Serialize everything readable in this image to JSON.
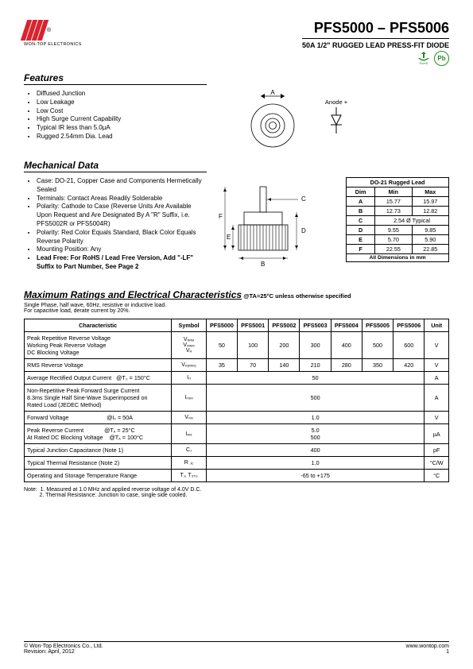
{
  "header": {
    "company": "WON-TOP ELECTRONICS",
    "part_range": "PFS5000 – PFS5006",
    "subtitle": "50A 1/2\" RUGGED LEAD PRESS-FIT DIODE",
    "rohs_text": "RoHS",
    "pb_text": "Pb"
  },
  "features": {
    "title": "Features",
    "items": [
      "Diffused Junction",
      "Low Leakage",
      "Low Cost",
      "High Surge Current Capability",
      "Typical IR less than 5.0µA",
      "Rugged 2.54mm Dia. Lead"
    ],
    "anode_label": "Anode +"
  },
  "mechanical": {
    "title": "Mechanical Data",
    "items": [
      "Case: DO-21, Copper Case and Components Hermetically Sealed",
      "Terminals: Contact Areas Readily Solderable",
      "Polarity: Cathode to Case (Reverse Units Are Available Upon Request and Are Designated By A \"R\" Suffix, i.e. PFS5002R or PFS5004R)",
      "Polarity: Red Color Equals Standard, Black Color Equals Reverse Polarity",
      "Mounting Position: Any",
      "Lead Free: For RoHS / Lead Free Version, Add \"-LF\" Suffix to Part Number, See Page 2"
    ],
    "dim_letters": {
      "A": "A",
      "B": "B",
      "C": "C",
      "D": "D",
      "E": "E",
      "F": "F"
    }
  },
  "dimtable": {
    "title": "DO-21 Rugged Lead",
    "head": {
      "dim": "Dim",
      "min": "Min",
      "max": "Max"
    },
    "rows": [
      {
        "d": "A",
        "min": "15.77",
        "max": "15.97"
      },
      {
        "d": "B",
        "min": "12.73",
        "max": "12.82"
      },
      {
        "d": "C",
        "note": "2.54 Ø Typical"
      },
      {
        "d": "D",
        "min": "9.55",
        "max": "9.85"
      },
      {
        "d": "E",
        "min": "5.70",
        "max": "5.90"
      },
      {
        "d": "F",
        "min": "22.55",
        "max": "22.85"
      }
    ],
    "footer": "All Dimensions in mm"
  },
  "ratings": {
    "title": "Maximum Ratings and Electrical Characteristics",
    "title_suffix": " @TA=25°C unless otherwise specified",
    "notes_above": [
      "Single Phase, half wave, 60Hz, resistive or inductive load.",
      "For capacitive load, derate current by 20%."
    ],
    "head": {
      "char": "Characteristic",
      "sym": "Symbol",
      "parts": [
        "PFS5000",
        "PFS5001",
        "PFS5002",
        "PFS5003",
        "PFS5004",
        "PFS5005",
        "PFS5006"
      ],
      "unit": "Unit"
    },
    "rows": [
      {
        "char": "Peak Repetitive Reverse Voltage<br>Working Peak Reverse Voltage<br>DC Blocking Voltage",
        "sym": "V<sub class='s'>RRM</sub><br>V<sub class='s'>RWM</sub><br>V<sub class='s'>R</sub>",
        "vals": [
          "50",
          "100",
          "200",
          "300",
          "400",
          "500",
          "600"
        ],
        "unit": "V"
      },
      {
        "char": "RMS Reverse Voltage",
        "sym": "V<sub class='s'>R(RMS)</sub>",
        "vals": [
          "35",
          "70",
          "140",
          "210",
          "280",
          "350",
          "420"
        ],
        "unit": "V"
      },
      {
        "char": "Average Rectified Output Current&nbsp;&nbsp;&nbsp;@T<sub class='s'>C</sub> = 150°C",
        "sym": "I<sub class='s'>O</sub>",
        "span_val": "50",
        "unit": "A"
      },
      {
        "char": "Non-Repetitive Peak Forward Surge Current<br>8.3ms Single Half Sine-Wave Superimposed on<br>Rated Load (JEDEC Method)",
        "sym": "I<sub class='s'>FSM</sub>",
        "span_val": "500",
        "unit": "A"
      },
      {
        "char": "Forward Voltage&nbsp;&nbsp;&nbsp;&nbsp;&nbsp;&nbsp;&nbsp;&nbsp;&nbsp;&nbsp;&nbsp;&nbsp;&nbsp;&nbsp;&nbsp;&nbsp;&nbsp;&nbsp;&nbsp;&nbsp;&nbsp;&nbsp;&nbsp;&nbsp;@I<sub class='s'>F</sub> = 50A",
        "sym": "V<sub class='s'>FM</sub>",
        "span_val": "1.0",
        "unit": "V"
      },
      {
        "char": "Peak Reverse Current&nbsp;&nbsp;&nbsp;&nbsp;&nbsp;&nbsp;&nbsp;&nbsp;&nbsp;&nbsp;&nbsp;&nbsp;&nbsp;@T<sub class='s'>A</sub> = 25°C<br>At Rated DC Blocking Voltage&nbsp;&nbsp;&nbsp;&nbsp;@T<sub class='s'>A</sub> = 100°C",
        "sym": "I<sub class='s'>RM</sub>",
        "span_val": "5.0<br>500",
        "unit": "µA"
      },
      {
        "char": "Typical Junction Capacitance (Note 1)",
        "sym": "C<sub class='s'>J</sub>",
        "span_val": "400",
        "unit": "pF"
      },
      {
        "char": "Typical Thermal Resistance (Note 2)",
        "sym": "R <sub class='s'>JC</sub>",
        "span_val": "1.0",
        "unit": "°C/W"
      },
      {
        "char": "Operating and Storage Temperature Range",
        "sym": "T<sub class='s'>J</sub>, T<sub class='s'>STG</sub>",
        "span_val": "-65 to +175",
        "unit": "°C"
      }
    ],
    "footnotes": "Note:&nbsp;&nbsp;1. Measured at 1.0 MHz and applied reverse voltage of 4.0V D.C.<br>&nbsp;&nbsp;&nbsp;&nbsp;&nbsp;&nbsp;&nbsp;&nbsp;&nbsp;&nbsp;2. Thermal Resistance: Junction to case, single side cooled."
  },
  "footer": {
    "left1": "© Won-Top Electronics Co., Ltd.",
    "left2": "Revision: April, 2012",
    "right1": "www.wontop.com",
    "right2": "1"
  },
  "colors": {
    "brand_red": "#d9232e",
    "green": "#228b22",
    "black": "#000000"
  }
}
